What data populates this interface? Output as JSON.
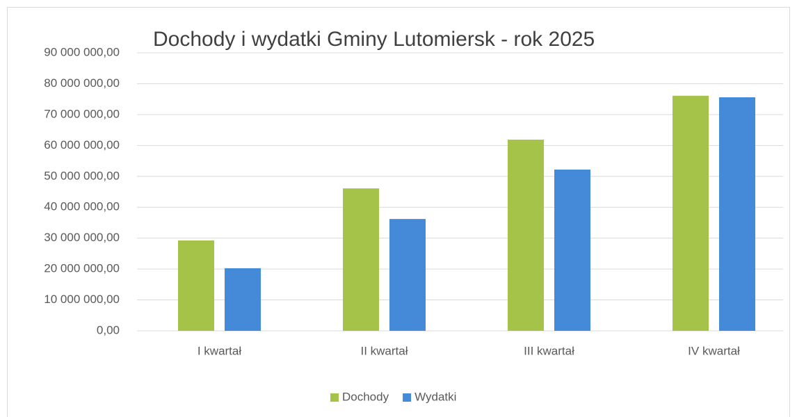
{
  "chart_data": {
    "type": "bar",
    "title": "Dochody i wydatki Gminy Lutomiersk - rok 2025",
    "categories": [
      "I kwartał",
      "II kwartał",
      "III kwartał",
      "IV kwartał"
    ],
    "series": [
      {
        "name": "Dochody",
        "color": "#a5c249",
        "values": [
          29250000,
          46100000,
          61900000,
          76100000
        ]
      },
      {
        "name": "Wydatki",
        "color": "#4589d9",
        "values": [
          20250000,
          36200000,
          52200000,
          75600000
        ]
      }
    ],
    "ylim": [
      0,
      90000000
    ],
    "yticks": [
      {
        "value": 0,
        "label": "0,00"
      },
      {
        "value": 10000000,
        "label": "10 000 000,00"
      },
      {
        "value": 20000000,
        "label": "20 000 000,00"
      },
      {
        "value": 30000000,
        "label": "30 000 000,00"
      },
      {
        "value": 40000000,
        "label": "40 000 000,00"
      },
      {
        "value": 50000000,
        "label": "50 000 000,00"
      },
      {
        "value": 60000000,
        "label": "60 000 000,00"
      },
      {
        "value": 70000000,
        "label": "70 000 000,00"
      },
      {
        "value": 80000000,
        "label": "80 000 000,00"
      },
      {
        "value": 90000000,
        "label": "90 000 000,00"
      }
    ],
    "grid": true,
    "legend": "bottom"
  }
}
